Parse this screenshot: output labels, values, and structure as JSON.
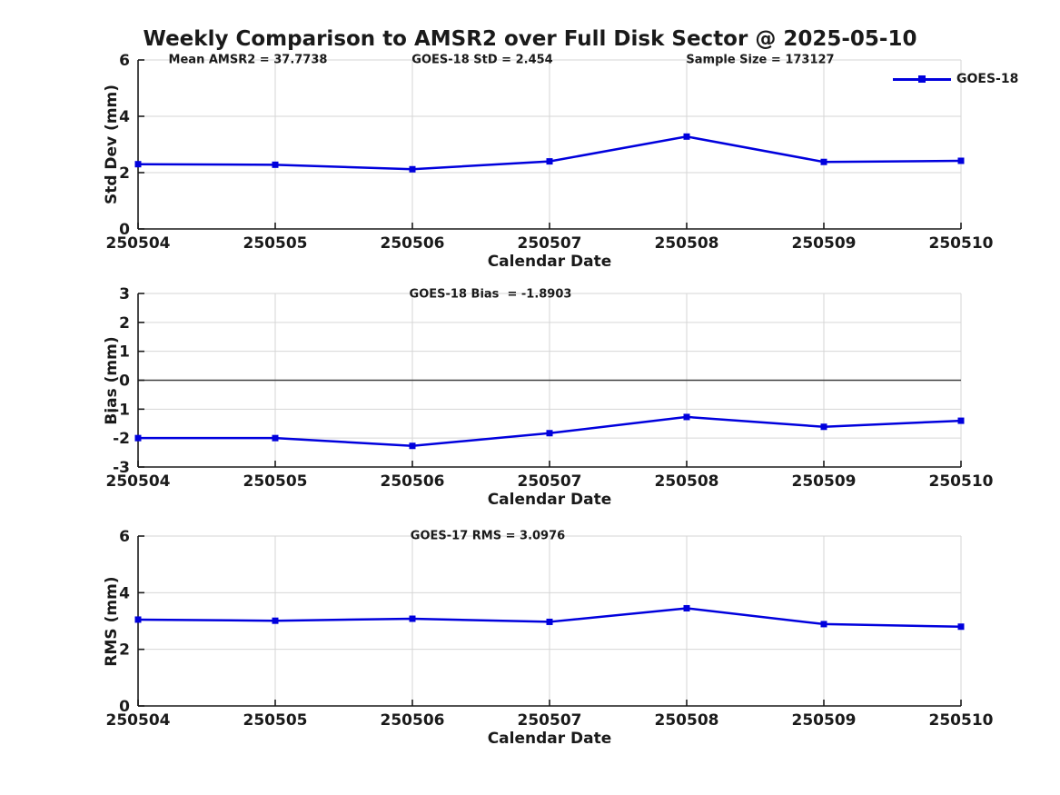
{
  "title": "Weekly Comparison to AMSR2 over Full Disk Sector @ 2025-05-10",
  "legend": {
    "label": "GOES-18"
  },
  "colors": {
    "line": "#0000dd",
    "axis": "#1a1a1a",
    "grid": "#d6d6d6",
    "zero_line": "#404040",
    "text": "#1a1a1a"
  },
  "chart_data": [
    {
      "type": "line",
      "categories": [
        "250504",
        "250505",
        "250506",
        "250507",
        "250508",
        "250509",
        "250510"
      ],
      "series": [
        {
          "name": "GOES-18",
          "values": [
            2.3,
            2.28,
            2.12,
            2.4,
            3.28,
            2.38,
            2.42
          ]
        }
      ],
      "ylabel": "Std Dev (mm)",
      "xlabel": "Calendar Date",
      "ylim": [
        0,
        6
      ],
      "yticks": [
        0,
        2,
        4,
        6
      ],
      "grid": true,
      "zero_line": false,
      "legend_position": "top-right-outside",
      "annotations": [
        "Mean AMSR2 = 37.7738",
        "GOES-18 StD = 2.454",
        "Sample Size = 173127"
      ]
    },
    {
      "type": "line",
      "categories": [
        "250504",
        "250505",
        "250506",
        "250507",
        "250508",
        "250509",
        "250510"
      ],
      "series": [
        {
          "name": "GOES-18",
          "values": [
            -2.0,
            -2.0,
            -2.27,
            -1.83,
            -1.27,
            -1.61,
            -1.4
          ]
        }
      ],
      "ylabel": "Bias (mm)",
      "xlabel": "Calendar Date",
      "ylim": [
        -3,
        3
      ],
      "yticks": [
        -3,
        -2,
        -1,
        0,
        1,
        2,
        3
      ],
      "grid": true,
      "zero_line": true,
      "annotations": [
        "GOES-18 Bias  = -1.8903"
      ]
    },
    {
      "type": "line",
      "categories": [
        "250504",
        "250505",
        "250506",
        "250507",
        "250508",
        "250509",
        "250510"
      ],
      "series": [
        {
          "name": "GOES-18",
          "values": [
            3.05,
            3.01,
            3.08,
            2.97,
            3.45,
            2.89,
            2.8
          ]
        }
      ],
      "ylabel": "RMS (mm)",
      "xlabel": "Calendar Date",
      "ylim": [
        0,
        6
      ],
      "yticks": [
        0,
        2,
        4,
        6
      ],
      "grid": true,
      "zero_line": false,
      "annotations": [
        "GOES-17 RMS = 3.0976"
      ]
    }
  ]
}
